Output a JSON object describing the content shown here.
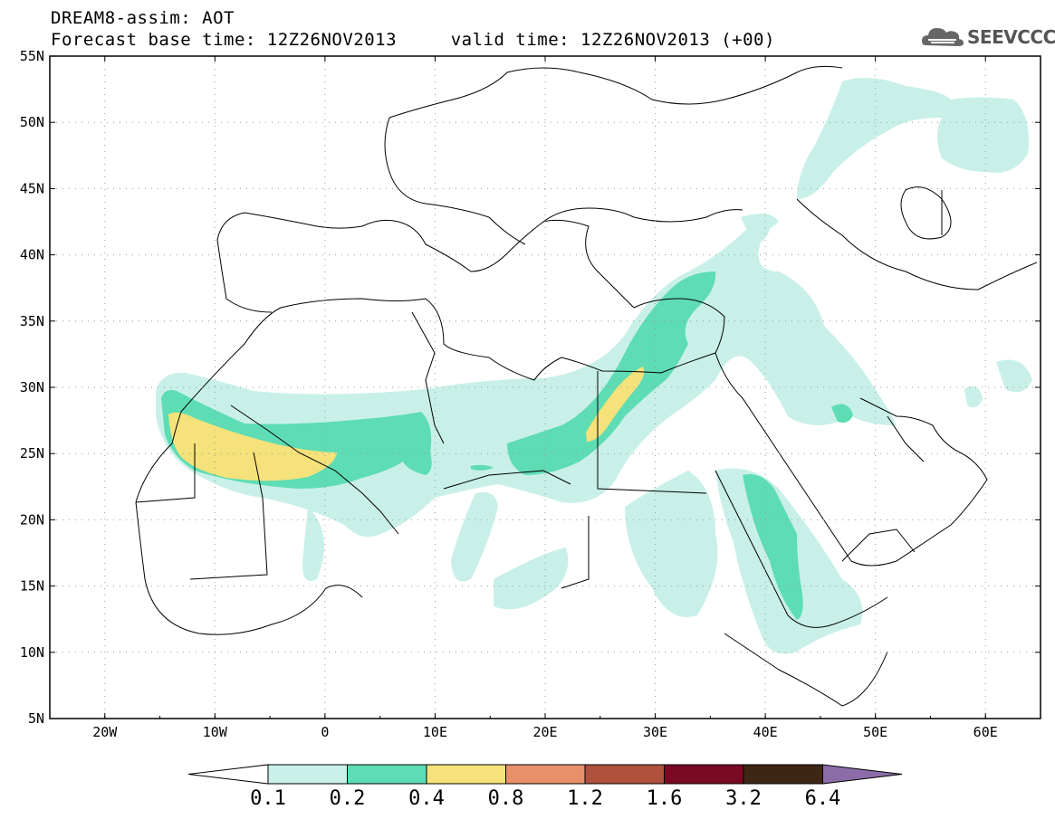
{
  "header": {
    "title_line1": "DREAM8-assim: AOT",
    "title_line2": "Forecast base time: 12Z26NOV2013     valid time: 12Z26NOV2013 (+00)"
  },
  "logo": {
    "text": "SEEVCCC",
    "icon": "cloud-icon"
  },
  "map": {
    "lat_range": [
      5,
      55
    ],
    "lon_range": [
      -25,
      65
    ],
    "lat_labels": [
      "55N",
      "50N",
      "45N",
      "40N",
      "35N",
      "30N",
      "25N",
      "20N",
      "15N",
      "10N",
      "5N"
    ],
    "lon_labels": [
      "20W",
      "10W",
      "0",
      "10E",
      "20E",
      "30E",
      "40E",
      "50E",
      "60E"
    ],
    "grid": true
  },
  "colorbar": {
    "levels": [
      "0.1",
      "0.2",
      "0.4",
      "0.8",
      "1.2",
      "1.6",
      "3.2",
      "6.4"
    ],
    "colors": [
      "#ffffff",
      "#c8f0e8",
      "#5edcb4",
      "#f5e27a",
      "#e8906a",
      "#b0513e",
      "#7a0a24",
      "#3e2614",
      "#8c6ca8"
    ]
  },
  "colors": {
    "aot_0_1": "#c8f0e8",
    "aot_0_2": "#5edcb4",
    "aot_0_4": "#f5e27a"
  }
}
